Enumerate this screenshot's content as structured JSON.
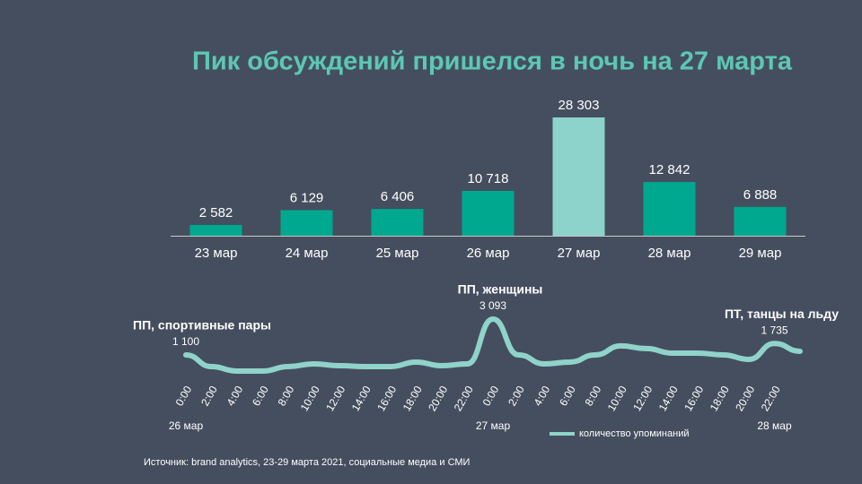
{
  "chart_data": [
    {
      "type": "bar",
      "title": "Пик обсуждений пришелся в ночь на 27 марта",
      "categories": [
        "23 мар",
        "24 мар",
        "25 мар",
        "26 мар",
        "27 мар",
        "28 мар",
        "29 мар"
      ],
      "values": [
        2582,
        6129,
        6406,
        10718,
        28303,
        12842,
        6888
      ],
      "value_labels": [
        "2 582",
        "6 129",
        "6 406",
        "10 718",
        "28 303",
        "12 842",
        "6 888"
      ],
      "colors": [
        "#00a88f",
        "#00a88f",
        "#00a88f",
        "#00a88f",
        "#8dd3cb",
        "#00a88f",
        "#00a88f"
      ]
    },
    {
      "type": "line",
      "categories": [
        "0:00",
        "2:00",
        "4:00",
        "6:00",
        "8:00",
        "10:00",
        "12:00",
        "14:00",
        "16:00",
        "18:00",
        "20:00",
        "22:00",
        "0:00",
        "2:00",
        "4:00",
        "6:00",
        "8:00",
        "10:00",
        "12:00",
        "14:00",
        "16:00",
        "18:00",
        "20:00",
        "22:00",
        null
      ],
      "dates": [
        "26 мар",
        null,
        null,
        null,
        null,
        null,
        null,
        null,
        null,
        null,
        null,
        null,
        "27 мар",
        null,
        null,
        null,
        null,
        null,
        null,
        null,
        null,
        null,
        null,
        "28 мар",
        null
      ],
      "series": [
        {
          "name": "количество упоминаний",
          "color": "#8fd3ca",
          "values": [
            1100,
            450,
            200,
            200,
            450,
            600,
            500,
            450,
            450,
            700,
            500,
            600,
            3093,
            1100,
            600,
            700,
            1100,
            1600,
            1450,
            1200,
            1200,
            1100,
            850,
            1735,
            1300
          ],
          "value_labels": [
            "1 100",
            null,
            null,
            null,
            null,
            null,
            null,
            null,
            null,
            null,
            null,
            null,
            "3 093",
            null,
            null,
            null,
            null,
            null,
            null,
            null,
            null,
            null,
            null,
            "1 735",
            null
          ],
          "annotations": [
            "ПП, спортивные пары",
            null,
            null,
            null,
            null,
            null,
            null,
            null,
            null,
            null,
            null,
            null,
            "ПП, женщины",
            null,
            null,
            null,
            null,
            null,
            null,
            null,
            null,
            null,
            null,
            "ПТ, танцы на льду",
            null
          ]
        }
      ]
    }
  ],
  "source": "Источник: brand analytics, 23-29 марта 2021, социальные медиа и СМИ"
}
